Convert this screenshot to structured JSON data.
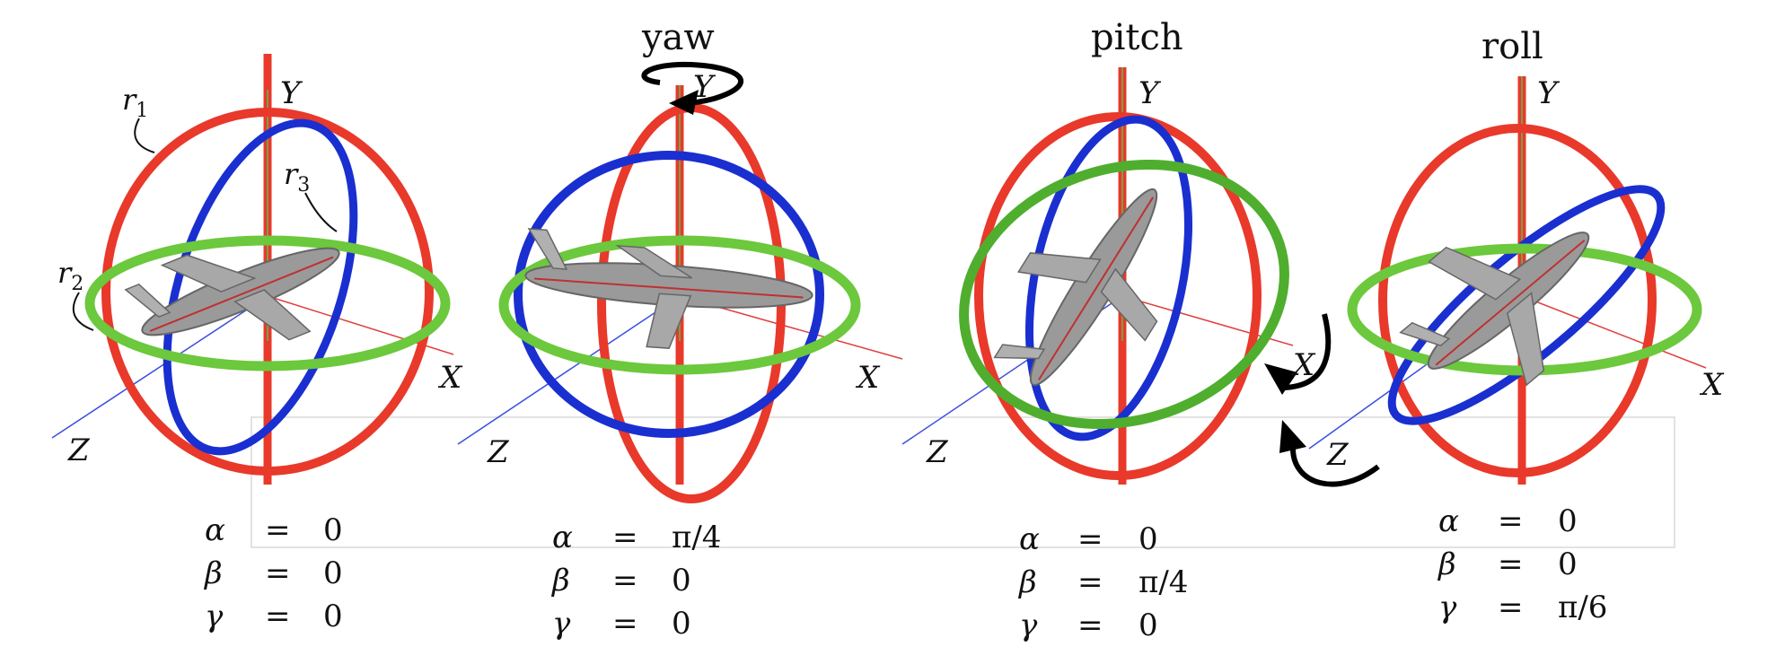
{
  "titles": [
    "yaw",
    "pitch",
    "roll"
  ],
  "axis_labels": {
    "x": "X",
    "y": "Y",
    "z": "Z"
  },
  "ring_labels": [
    {
      "base": "r",
      "sub": "1"
    },
    {
      "base": "r",
      "sub": "2"
    },
    {
      "base": "r",
      "sub": "3"
    }
  ],
  "colors": {
    "ring_r1": "#e8392a",
    "ring_r2": "#6cc83c",
    "ring_r3": "#1a2fd0",
    "axis_x": "#e04040",
    "axis_y": "#55c055",
    "axis_z": "#3a4fe0",
    "aircraft": "#9a9a9a",
    "arrow": "#000000"
  },
  "panels": [
    {
      "title": "",
      "equations": [
        {
          "symbol": "α",
          "eq": "=",
          "value": "0"
        },
        {
          "symbol": "β",
          "eq": "=",
          "value": "0"
        },
        {
          "symbol": "γ",
          "eq": "=",
          "value": "0"
        }
      ]
    },
    {
      "title": "yaw",
      "equations": [
        {
          "symbol": "α",
          "eq": "=",
          "value": "π/4"
        },
        {
          "symbol": "β",
          "eq": "=",
          "value": "0"
        },
        {
          "symbol": "γ",
          "eq": "=",
          "value": "0"
        }
      ]
    },
    {
      "title": "pitch",
      "equations": [
        {
          "symbol": "α",
          "eq": "=",
          "value": "0"
        },
        {
          "symbol": "β",
          "eq": "=",
          "value": "π/4"
        },
        {
          "symbol": "γ",
          "eq": "=",
          "value": "0"
        }
      ]
    },
    {
      "title": "roll",
      "equations": [
        {
          "symbol": "α",
          "eq": "=",
          "value": "0"
        },
        {
          "symbol": "β",
          "eq": "=",
          "value": "0"
        },
        {
          "symbol": "γ",
          "eq": "=",
          "value": "π/6"
        }
      ]
    }
  ]
}
